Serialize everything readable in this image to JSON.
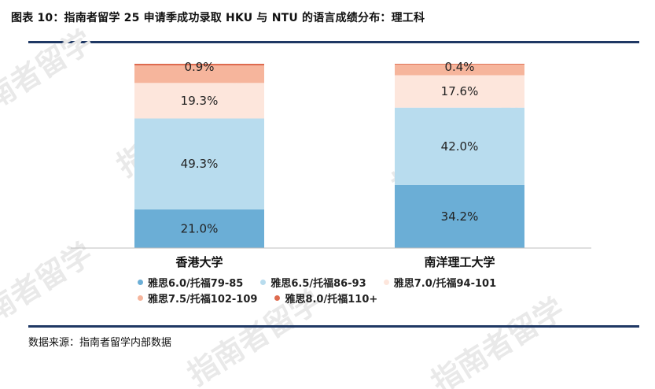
{
  "title": "图表 10：指南者留学 25 申请季成功录取 HKU 与 NTU 的语言成绩分布：理工科",
  "source": "数据来源：指南者留学内部数据",
  "watermark_text": "指南者留学",
  "colors": {
    "title_rule": "#1f3864",
    "series": [
      "#6baed6",
      "#b8dcee",
      "#fde6dc",
      "#f6b59c",
      "#de6b4f"
    ]
  },
  "chart_data": {
    "type": "bar",
    "stacked": true,
    "percent_stacked": true,
    "categories": [
      "香港大学",
      "南洋理工大学"
    ],
    "series": [
      {
        "name": "雅思6.0/托福79-85",
        "values": [
          21.0,
          34.2
        ]
      },
      {
        "name": "雅思6.5/托福86-93",
        "values": [
          49.3,
          42.0
        ]
      },
      {
        "name": "雅思7.0/托福94-101",
        "values": [
          19.3,
          17.6
        ]
      },
      {
        "name": "雅思7.5/托福102-109",
        "values": [
          9.5,
          5.8
        ]
      },
      {
        "name": "雅思8.0/托福110+",
        "values": [
          0.9,
          0.4
        ]
      }
    ],
    "data_labels": [
      [
        "21.0%",
        "49.3%",
        "19.3%",
        "",
        "0.9%"
      ],
      [
        "34.2%",
        "42.0%",
        "17.6%",
        "",
        "0.4%"
      ]
    ],
    "ylim": [
      0,
      100
    ],
    "grid": false,
    "legend_position": "bottom"
  }
}
